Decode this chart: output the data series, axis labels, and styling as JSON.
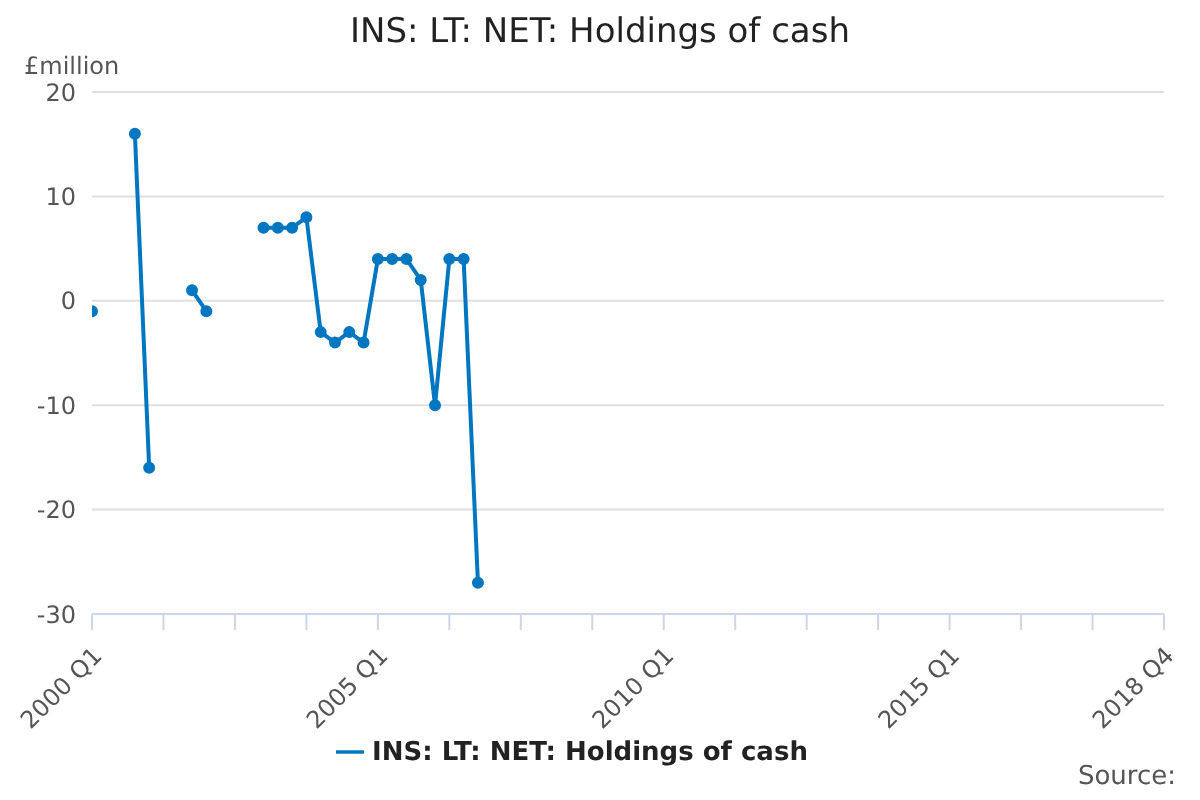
{
  "chart_data": {
    "type": "line",
    "title": "INS: LT: NET: Holdings of cash",
    "ylabel": "£million",
    "annotations": [
      "Source:"
    ],
    "categories": [
      "2000 Q1",
      null,
      null,
      null,
      null,
      null,
      null,
      null,
      null,
      null,
      null,
      null,
      null,
      null,
      null,
      null,
      null,
      null,
      null,
      null,
      "2005 Q1",
      null,
      null,
      null,
      null,
      null,
      null,
      null,
      null,
      null,
      null,
      null,
      null,
      null,
      null,
      null,
      null,
      null,
      null,
      null,
      "2010 Q1",
      null,
      null,
      null,
      null,
      null,
      null,
      null,
      null,
      null,
      null,
      null,
      null,
      null,
      null,
      null,
      null,
      null,
      null,
      null,
      "2015 Q1",
      null,
      null,
      null,
      null,
      null,
      null,
      null,
      null,
      null,
      null,
      null,
      null,
      null,
      null,
      "2018 Q4"
    ],
    "series": [
      {
        "name": "INS: LT: NET: Holdings of cash",
        "color": "#0077c0",
        "values": [
          -1,
          null,
          null,
          16,
          -16,
          null,
          null,
          1,
          -1,
          null,
          null,
          null,
          7,
          7,
          7,
          8,
          -3,
          -4,
          -3,
          -4,
          4,
          4,
          4,
          2,
          -10,
          4,
          4,
          -27,
          null,
          null,
          null,
          null,
          null,
          null,
          null,
          null,
          null,
          null,
          null,
          null,
          null,
          null,
          null,
          null,
          null,
          null,
          null,
          null,
          null,
          null,
          null,
          null,
          null,
          null,
          null,
          null,
          null,
          null,
          null,
          null,
          null,
          null,
          null,
          null,
          null,
          null,
          null,
          null,
          null,
          null,
          null,
          null,
          null,
          null,
          null,
          null
        ]
      }
    ],
    "ylim": [
      -30,
      20
    ],
    "yticks": [
      -30,
      -20,
      -10,
      0,
      10,
      20
    ],
    "grid": "y",
    "legend": "bottom",
    "marker": "circle",
    "line_style": "solid"
  }
}
